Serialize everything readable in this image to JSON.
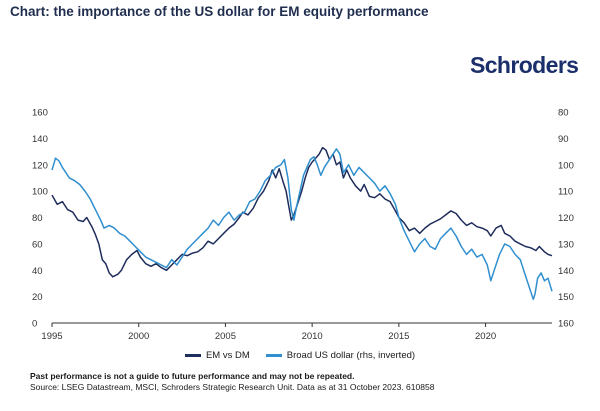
{
  "title": "Chart: the importance of the US dollar for EM equity performance",
  "logo_text": "Schroders",
  "footnote_bold": "Past performance is not a guide to future performance and may not be repeated.",
  "footnote_source": "Source: LSEG Datastream, MSCI, Schroders Strategic Research Unit. Data as at 31 October 2023.  610858",
  "colors": {
    "series1": "#1f2d5c",
    "series2": "#2f8fcf",
    "axis": "#333333"
  },
  "chart_data": {
    "type": "line",
    "x_range": [
      1995.0,
      2023.83
    ],
    "x_ticks": [
      "1995",
      "2000",
      "2005",
      "2010",
      "2015",
      "2020"
    ],
    "y_left": {
      "range": [
        0,
        160
      ],
      "ticks": [
        "160",
        "140",
        "120",
        "100",
        "80",
        "60",
        "40",
        "20",
        "0"
      ]
    },
    "y_right": {
      "range": [
        80,
        160
      ],
      "inverted": true,
      "ticks": [
        "80",
        "90",
        "100",
        "110",
        "120",
        "130",
        "140",
        "150",
        "160"
      ]
    },
    "grid": false,
    "legend": "bottom-center",
    "series": [
      {
        "name": "EM vs DM",
        "axis": "left",
        "color": "#1f2d5c",
        "points": [
          [
            1995.0,
            97
          ],
          [
            1995.3,
            90
          ],
          [
            1995.6,
            92
          ],
          [
            1995.9,
            86
          ],
          [
            1996.2,
            84
          ],
          [
            1996.5,
            78
          ],
          [
            1996.8,
            77
          ],
          [
            1997.0,
            80
          ],
          [
            1997.3,
            73
          ],
          [
            1997.5,
            67
          ],
          [
            1997.7,
            60
          ],
          [
            1997.9,
            48
          ],
          [
            1998.1,
            45
          ],
          [
            1998.3,
            38
          ],
          [
            1998.5,
            35
          ],
          [
            1998.8,
            37
          ],
          [
            1999.0,
            40
          ],
          [
            1999.3,
            48
          ],
          [
            1999.6,
            52
          ],
          [
            1999.9,
            55
          ],
          [
            2000.1,
            50
          ],
          [
            2000.4,
            45
          ],
          [
            2000.7,
            43
          ],
          [
            2001.0,
            45
          ],
          [
            2001.3,
            42
          ],
          [
            2001.6,
            40
          ],
          [
            2001.9,
            44
          ],
          [
            2002.2,
            48
          ],
          [
            2002.5,
            52
          ],
          [
            2002.8,
            51
          ],
          [
            2003.1,
            53
          ],
          [
            2003.4,
            54
          ],
          [
            2003.7,
            57
          ],
          [
            2004.0,
            62
          ],
          [
            2004.3,
            60
          ],
          [
            2004.6,
            64
          ],
          [
            2004.9,
            68
          ],
          [
            2005.2,
            72
          ],
          [
            2005.5,
            75
          ],
          [
            2005.8,
            80
          ],
          [
            2006.0,
            84
          ],
          [
            2006.3,
            82
          ],
          [
            2006.6,
            87
          ],
          [
            2006.9,
            95
          ],
          [
            2007.2,
            100
          ],
          [
            2007.5,
            108
          ],
          [
            2007.7,
            116
          ],
          [
            2007.9,
            110
          ],
          [
            2008.1,
            117
          ],
          [
            2008.3,
            108
          ],
          [
            2008.5,
            100
          ],
          [
            2008.7,
            85
          ],
          [
            2008.8,
            78
          ],
          [
            2008.95,
            82
          ],
          [
            2009.2,
            92
          ],
          [
            2009.4,
            100
          ],
          [
            2009.6,
            110
          ],
          [
            2009.8,
            118
          ],
          [
            2010.0,
            122
          ],
          [
            2010.2,
            125
          ],
          [
            2010.4,
            128
          ],
          [
            2010.6,
            133
          ],
          [
            2010.8,
            131
          ],
          [
            2011.0,
            124
          ],
          [
            2011.2,
            128
          ],
          [
            2011.4,
            120
          ],
          [
            2011.6,
            122
          ],
          [
            2011.8,
            110
          ],
          [
            2012.0,
            116
          ],
          [
            2012.2,
            110
          ],
          [
            2012.5,
            104
          ],
          [
            2012.8,
            100
          ],
          [
            2013.0,
            105
          ],
          [
            2013.3,
            96
          ],
          [
            2013.6,
            95
          ],
          [
            2013.9,
            98
          ],
          [
            2014.2,
            94
          ],
          [
            2014.5,
            92
          ],
          [
            2014.8,
            85
          ],
          [
            2015.0,
            80
          ],
          [
            2015.3,
            76
          ],
          [
            2015.6,
            70
          ],
          [
            2015.9,
            72
          ],
          [
            2016.2,
            68
          ],
          [
            2016.5,
            72
          ],
          [
            2016.8,
            75
          ],
          [
            2017.1,
            77
          ],
          [
            2017.4,
            79
          ],
          [
            2017.7,
            82
          ],
          [
            2018.0,
            85
          ],
          [
            2018.3,
            83
          ],
          [
            2018.6,
            78
          ],
          [
            2018.9,
            74
          ],
          [
            2019.2,
            76
          ],
          [
            2019.5,
            73
          ],
          [
            2019.8,
            72
          ],
          [
            2020.1,
            70
          ],
          [
            2020.3,
            66
          ],
          [
            2020.6,
            72
          ],
          [
            2020.9,
            74
          ],
          [
            2021.1,
            68
          ],
          [
            2021.4,
            66
          ],
          [
            2021.7,
            62
          ],
          [
            2022.0,
            60
          ],
          [
            2022.3,
            58
          ],
          [
            2022.6,
            57
          ],
          [
            2022.9,
            55
          ],
          [
            2023.1,
            58
          ],
          [
            2023.4,
            54
          ],
          [
            2023.6,
            52
          ],
          [
            2023.83,
            51
          ]
        ]
      },
      {
        "name": "Broad US dollar (rhs, inverted)",
        "axis": "right",
        "color": "#2f8fcf",
        "points": [
          [
            1995.0,
            102
          ],
          [
            1995.2,
            97.5
          ],
          [
            1995.4,
            98.5
          ],
          [
            1995.6,
            101
          ],
          [
            1995.8,
            103
          ],
          [
            1996.0,
            105
          ],
          [
            1996.3,
            106
          ],
          [
            1996.6,
            107.5
          ],
          [
            1996.9,
            110
          ],
          [
            1997.2,
            113
          ],
          [
            1997.5,
            117
          ],
          [
            1997.8,
            121
          ],
          [
            1998.0,
            124
          ],
          [
            1998.3,
            123
          ],
          [
            1998.6,
            124
          ],
          [
            1998.9,
            126
          ],
          [
            1999.2,
            127
          ],
          [
            1999.5,
            129
          ],
          [
            1999.8,
            131
          ],
          [
            2000.1,
            133
          ],
          [
            2000.4,
            135
          ],
          [
            2000.7,
            136
          ],
          [
            2001.0,
            137
          ],
          [
            2001.3,
            138
          ],
          [
            2001.6,
            139
          ],
          [
            2001.9,
            136
          ],
          [
            2002.2,
            138
          ],
          [
            2002.5,
            135
          ],
          [
            2002.8,
            132
          ],
          [
            2003.1,
            130
          ],
          [
            2003.4,
            128
          ],
          [
            2003.7,
            126
          ],
          [
            2004.0,
            124
          ],
          [
            2004.3,
            121
          ],
          [
            2004.6,
            123
          ],
          [
            2004.9,
            120
          ],
          [
            2005.2,
            118
          ],
          [
            2005.5,
            121
          ],
          [
            2005.8,
            119
          ],
          [
            2006.1,
            118
          ],
          [
            2006.4,
            114
          ],
          [
            2006.7,
            113
          ],
          [
            2007.0,
            110
          ],
          [
            2007.3,
            106
          ],
          [
            2007.6,
            104
          ],
          [
            2007.9,
            101
          ],
          [
            2008.2,
            100
          ],
          [
            2008.4,
            98
          ],
          [
            2008.6,
            105
          ],
          [
            2008.8,
            117
          ],
          [
            2008.95,
            121
          ],
          [
            2009.1,
            116
          ],
          [
            2009.3,
            110
          ],
          [
            2009.5,
            104
          ],
          [
            2009.7,
            101
          ],
          [
            2009.9,
            98
          ],
          [
            2010.1,
            97
          ],
          [
            2010.3,
            100
          ],
          [
            2010.5,
            104
          ],
          [
            2010.7,
            101
          ],
          [
            2010.9,
            99
          ],
          [
            2011.2,
            96
          ],
          [
            2011.4,
            94
          ],
          [
            2011.6,
            96
          ],
          [
            2011.8,
            103
          ],
          [
            2012.1,
            100
          ],
          [
            2012.4,
            104
          ],
          [
            2012.7,
            101
          ],
          [
            2013.0,
            103
          ],
          [
            2013.3,
            105
          ],
          [
            2013.6,
            107
          ],
          [
            2013.9,
            110
          ],
          [
            2014.2,
            108
          ],
          [
            2014.5,
            111
          ],
          [
            2014.8,
            115
          ],
          [
            2015.0,
            120
          ],
          [
            2015.3,
            125
          ],
          [
            2015.6,
            129
          ],
          [
            2015.9,
            133
          ],
          [
            2016.2,
            130
          ],
          [
            2016.5,
            128
          ],
          [
            2016.8,
            131
          ],
          [
            2017.1,
            132
          ],
          [
            2017.4,
            128
          ],
          [
            2017.7,
            126
          ],
          [
            2018.0,
            124
          ],
          [
            2018.3,
            127
          ],
          [
            2018.6,
            131
          ],
          [
            2018.9,
            134
          ],
          [
            2019.2,
            132
          ],
          [
            2019.5,
            135
          ],
          [
            2019.8,
            134
          ],
          [
            2020.1,
            138
          ],
          [
            2020.3,
            144
          ],
          [
            2020.5,
            140
          ],
          [
            2020.8,
            134
          ],
          [
            2021.1,
            130
          ],
          [
            2021.4,
            131
          ],
          [
            2021.7,
            134
          ],
          [
            2022.0,
            136
          ],
          [
            2022.2,
            140
          ],
          [
            2022.5,
            146
          ],
          [
            2022.75,
            151
          ],
          [
            2022.85,
            149
          ],
          [
            2023.0,
            143
          ],
          [
            2023.2,
            141
          ],
          [
            2023.4,
            144
          ],
          [
            2023.6,
            143
          ],
          [
            2023.83,
            148
          ]
        ]
      }
    ]
  }
}
